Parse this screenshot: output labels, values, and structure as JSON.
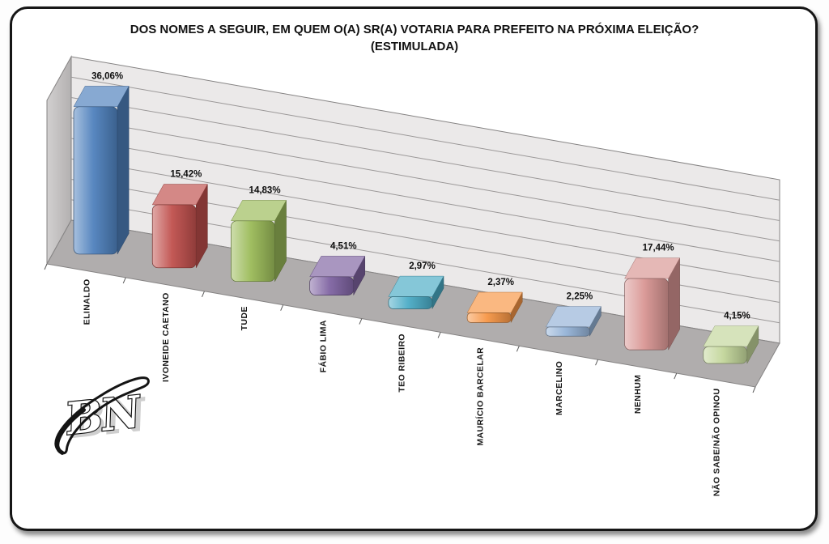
{
  "title": {
    "line1": "DOS NOMES A SEGUIR, EM QUEM O(A) SR(A) VOTARIA PARA PREFEITO NA PRÓXIMA ELEIÇÃO?",
    "line2": "(ESTIMULADA)"
  },
  "watermark": {
    "text": "BN"
  },
  "chart_data": {
    "type": "bar",
    "projection": "3d-oblique",
    "title": "DOS NOMES A SEGUIR, EM QUEM O(A) SR(A) VOTARIA PARA PREFEITO NA PRÓXIMA ELEIÇÃO? (ESTIMULADA)",
    "categories": [
      "ELINALDO",
      "IVONEIDE CAETANO",
      "TUDE",
      "FÁBIO LIMA",
      "TEO RIBEIRO",
      "MAURÍCIO BARCELAR",
      "MARCELINO",
      "NENHUM",
      "NÃO SABE/NÃO OPINOU"
    ],
    "values": [
      36.06,
      15.42,
      14.83,
      4.51,
      2.97,
      2.37,
      2.25,
      17.44,
      4.15
    ],
    "value_labels": [
      "36,06%",
      "15,42%",
      "14,83%",
      "4,51%",
      "2,97%",
      "2,37%",
      "2,25%",
      "17,44%",
      "4,15%"
    ],
    "bar_colors": [
      "#4F81BD",
      "#C0504D",
      "#9BBB59",
      "#8064A2",
      "#4BACC6",
      "#F79646",
      "#95B3D7",
      "#D99694",
      "#C3D69B"
    ],
    "xlabel": "",
    "ylabel": "",
    "ylim": [
      0,
      40
    ],
    "gridline_step": 5,
    "grid": true,
    "legend": "none",
    "category_label_rotation": -90,
    "data_label_position": "above-bar"
  },
  "colors": {
    "back_wall": "#ebe9e9",
    "left_wall_light": "#d2d0d0",
    "left_wall_dark": "#b3b0b0",
    "floor": "#b0adad",
    "gridline": "#9b9898",
    "edge": "#858383",
    "tick": "#5a5a5a",
    "text": "#121212"
  }
}
